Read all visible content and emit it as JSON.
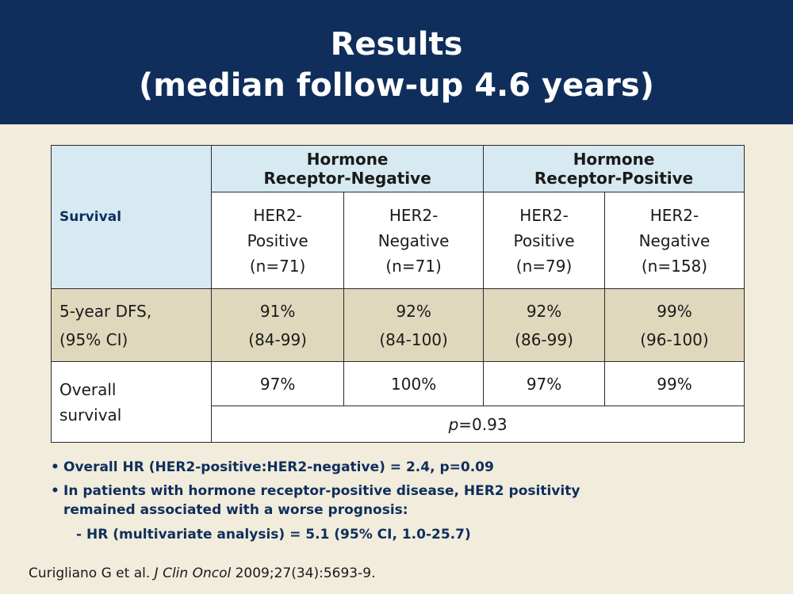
{
  "title": {
    "line1": "Results",
    "line2": "(median follow-up 4.6 years)"
  },
  "table": {
    "survival_header": "Survival",
    "groups": [
      {
        "line1": "Hormone",
        "line2": "Receptor-Negative"
      },
      {
        "line1": "Hormone",
        "line2": "Receptor-Positive"
      }
    ],
    "subgroups": [
      {
        "l1": "HER2-",
        "l2": "Positive",
        "n": "(n=71)"
      },
      {
        "l1": "HER2-",
        "l2": "Negative",
        "n": "(n=71)"
      },
      {
        "l1": "HER2-",
        "l2": "Positive",
        "n": "(n=79)"
      },
      {
        "l1": "HER2-",
        "l2": "Negative",
        "n": "(n=158)"
      }
    ],
    "dfs": {
      "label1": "5-year DFS,",
      "label2": "(95% CI)",
      "values": [
        {
          "pct": "91%",
          "ci": "(84-99)"
        },
        {
          "pct": "92%",
          "ci": "(84-100)"
        },
        {
          "pct": "92%",
          "ci": "(86-99)"
        },
        {
          "pct": "99%",
          "ci": "(96-100)"
        }
      ]
    },
    "os": {
      "label1": "Overall",
      "label2": "survival",
      "values": [
        "97%",
        "100%",
        "97%",
        "99%"
      ],
      "p_italic": "p",
      "p_rest": "=0.93"
    }
  },
  "bullets": {
    "b1": "Overall HR (HER2-positive:HER2-negative) = 2.4, p=0.09",
    "b2_line1": "In patients with hormone receptor-positive disease, HER2 positivity",
    "b2_line2": "remained associated with a worse prognosis:",
    "sub": "- HR (multivariate analysis) = 5.1 (95% CI, 1.0-25.7)",
    "marker": "•"
  },
  "citation": {
    "authors": "Curigliano G et al.",
    "journal": "J Clin Oncol",
    "ref": "2009;27(34):5693-9."
  }
}
